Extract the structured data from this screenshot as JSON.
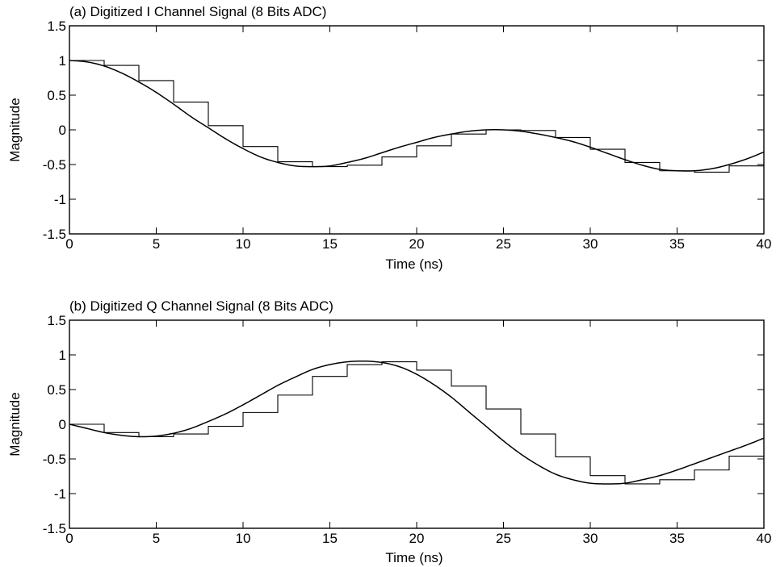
{
  "chart_data": [
    {
      "type": "line",
      "title": "(a) Digitized I Channel Signal (8 Bits ADC)",
      "xlabel": "Time (ns)",
      "ylabel": "Magnitude",
      "xlim": [
        0,
        40
      ],
      "ylim": [
        -1.5,
        1.5
      ],
      "xticks": [
        "0",
        "5",
        "10",
        "15",
        "20",
        "25",
        "30",
        "35",
        "40"
      ],
      "yticks": [
        "1.5",
        "1",
        "0.5",
        "0",
        "-0.5",
        "-1",
        "-1.5"
      ],
      "grid": false,
      "series": [
        {
          "kind": "analog",
          "x": [
            0,
            1,
            2,
            3,
            4,
            5,
            6,
            7,
            8,
            9,
            10,
            11,
            12,
            13,
            14,
            15,
            16,
            17,
            18,
            19,
            20,
            21,
            22,
            23,
            24,
            25,
            26,
            27,
            28,
            29,
            30,
            31,
            32,
            33,
            34,
            35,
            36,
            37,
            38,
            39,
            40
          ],
          "values": [
            1.0,
            0.98,
            0.92,
            0.82,
            0.69,
            0.54,
            0.37,
            0.19,
            0.03,
            -0.13,
            -0.27,
            -0.39,
            -0.47,
            -0.52,
            -0.53,
            -0.52,
            -0.47,
            -0.41,
            -0.33,
            -0.25,
            -0.18,
            -0.11,
            -0.06,
            -0.02,
            0.0,
            0.0,
            -0.02,
            -0.06,
            -0.11,
            -0.17,
            -0.25,
            -0.34,
            -0.43,
            -0.51,
            -0.57,
            -0.59,
            -0.59,
            -0.56,
            -0.5,
            -0.42,
            -0.32
          ]
        },
        {
          "kind": "sampled-hold",
          "x": [
            0,
            2,
            4,
            6,
            8,
            10,
            12,
            14,
            16,
            18,
            20,
            22,
            24,
            26,
            28,
            30,
            32,
            34,
            36,
            38,
            40
          ],
          "values": [
            1.0,
            0.93,
            0.71,
            0.4,
            0.06,
            -0.24,
            -0.46,
            -0.53,
            -0.51,
            -0.39,
            -0.23,
            -0.06,
            0.0,
            -0.01,
            -0.11,
            -0.28,
            -0.47,
            -0.59,
            -0.61,
            -0.52,
            -0.52
          ]
        }
      ]
    },
    {
      "type": "line",
      "title": "(b) Digitized Q Channel Signal (8 Bits ADC)",
      "xlabel": "Time (ns)",
      "ylabel": "Magnitude",
      "xlim": [
        0,
        40
      ],
      "ylim": [
        -1.5,
        1.5
      ],
      "xticks": [
        "0",
        "5",
        "10",
        "15",
        "20",
        "25",
        "30",
        "35",
        "40"
      ],
      "yticks": [
        "1.5",
        "1",
        "0.5",
        "0",
        "-0.5",
        "-1",
        "-1.5"
      ],
      "grid": false,
      "series": [
        {
          "kind": "analog",
          "x": [
            0,
            1,
            2,
            3,
            4,
            5,
            6,
            7,
            8,
            9,
            10,
            11,
            12,
            13,
            14,
            15,
            16,
            17,
            18,
            19,
            20,
            21,
            22,
            23,
            24,
            25,
            26,
            27,
            28,
            29,
            30,
            31,
            32,
            33,
            34,
            35,
            36,
            37,
            38,
            39,
            40
          ],
          "values": [
            0.0,
            -0.06,
            -0.12,
            -0.16,
            -0.18,
            -0.17,
            -0.13,
            -0.06,
            0.04,
            0.15,
            0.28,
            0.42,
            0.56,
            0.68,
            0.79,
            0.86,
            0.9,
            0.91,
            0.89,
            0.83,
            0.72,
            0.57,
            0.39,
            0.18,
            -0.03,
            -0.24,
            -0.43,
            -0.59,
            -0.72,
            -0.8,
            -0.85,
            -0.86,
            -0.85,
            -0.8,
            -0.74,
            -0.66,
            -0.57,
            -0.48,
            -0.39,
            -0.3,
            -0.2
          ]
        },
        {
          "kind": "sampled-hold",
          "x": [
            0,
            2,
            4,
            6,
            8,
            10,
            12,
            14,
            16,
            18,
            20,
            22,
            24,
            26,
            28,
            30,
            32,
            34,
            36,
            38,
            40
          ],
          "values": [
            0.0,
            -0.12,
            -0.18,
            -0.14,
            -0.03,
            0.17,
            0.42,
            0.69,
            0.86,
            0.9,
            0.78,
            0.55,
            0.22,
            -0.14,
            -0.47,
            -0.74,
            -0.86,
            -0.8,
            -0.66,
            -0.46,
            -0.46
          ]
        }
      ]
    }
  ]
}
